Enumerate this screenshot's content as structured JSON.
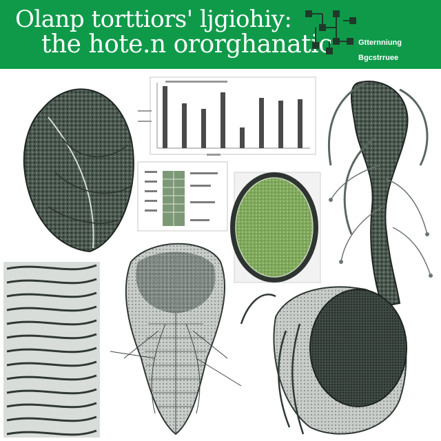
{
  "banner": {
    "title_line1": "Olanp torttiors' ljgiohiy:",
    "title_line2": "the hote.n ororghanatic",
    "side_note_1": "Gtternniung",
    "side_note_2": "Bgcstrruee",
    "color": "#0f9a4a"
  },
  "panels": {
    "leaf": "leaf-illustration",
    "bar_panel": "bar-chart-panel",
    "table_panel": "table-panel",
    "green_cell": "green-cell-illustration",
    "stem": "stem-root-illustration",
    "fibers": "fiber-illustration",
    "cross_section": "cross-section-illustration",
    "seed": "seed-pod-illustration"
  }
}
